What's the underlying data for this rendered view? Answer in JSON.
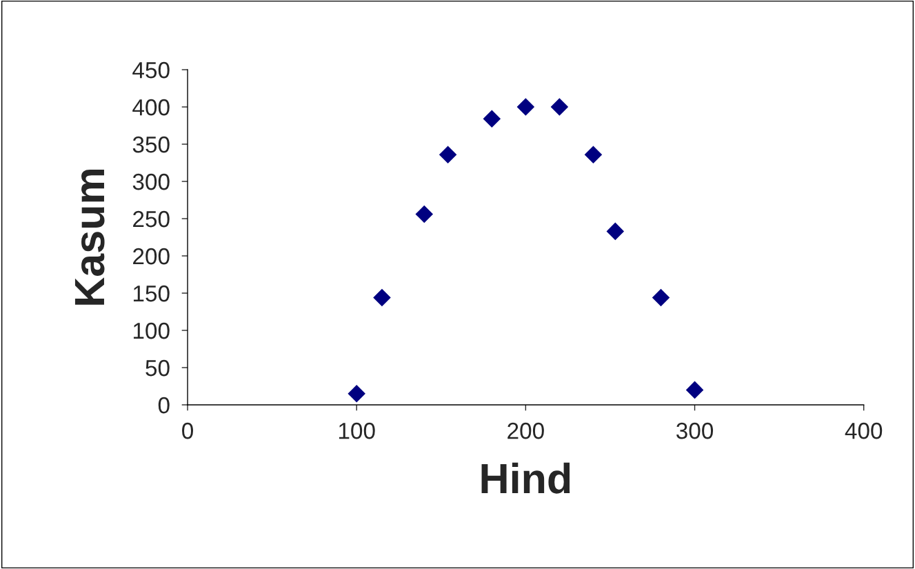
{
  "chart_data": {
    "type": "scatter",
    "xlabel": "Hind",
    "ylabel": "Kasum",
    "x": [
      100,
      115,
      140,
      154,
      180,
      200,
      220,
      240,
      253,
      280,
      300
    ],
    "series": [
      {
        "color": "#000080",
        "values": [
          15,
          144,
          256,
          336,
          384,
          400,
          400,
          336,
          233,
          144,
          20
        ]
      }
    ],
    "xlim": [
      0,
      400
    ],
    "xticks": [
      0,
      100,
      200,
      300,
      400
    ],
    "ylim": [
      0,
      450
    ],
    "yticks": [
      0,
      50,
      100,
      150,
      200,
      250,
      300,
      350,
      400,
      450
    ],
    "marker": "diamond",
    "grid": false,
    "legend": false
  }
}
